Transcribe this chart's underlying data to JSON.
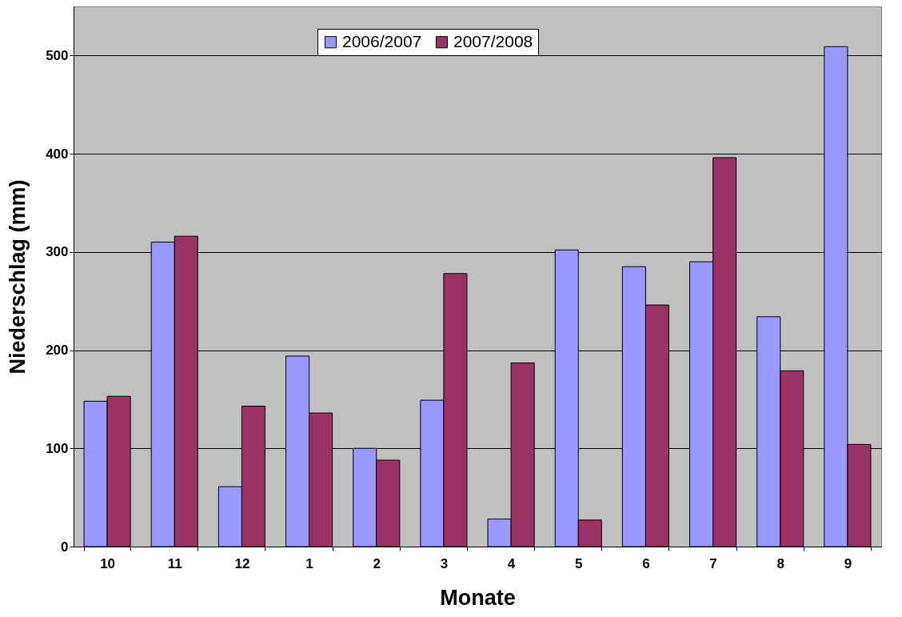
{
  "chart_data": {
    "type": "bar",
    "xlabel": "Monate",
    "ylabel": "Niederschlag (mm)",
    "categories": [
      "10",
      "11",
      "12",
      "1",
      "2",
      "3",
      "4",
      "5",
      "6",
      "7",
      "8",
      "9"
    ],
    "series": [
      {
        "name": "2006/2007",
        "color": "#9999ff",
        "values": [
          148,
          310,
          61,
          194,
          100,
          149,
          28,
          302,
          285,
          290,
          234,
          509
        ]
      },
      {
        "name": "2007/2008",
        "color": "#993366",
        "values": [
          153,
          316,
          143,
          136,
          88,
          278,
          187,
          27,
          246,
          396,
          179,
          104
        ]
      }
    ],
    "ylim": [
      0,
      550
    ],
    "yticks": [
      0,
      100,
      200,
      300,
      400,
      500
    ],
    "grid": "y",
    "legend": "top"
  }
}
